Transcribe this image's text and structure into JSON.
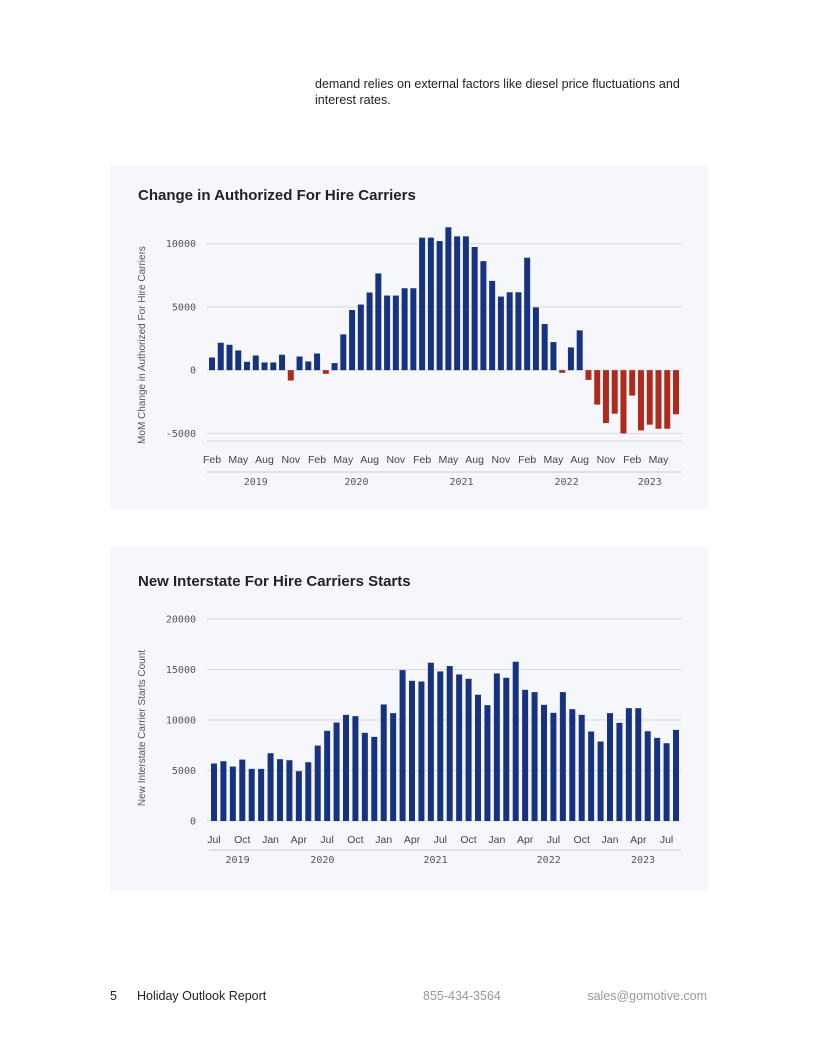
{
  "intro_text": "demand relies on external factors like diesel price fluctuations and interest rates.",
  "colors": {
    "positive": "#17337f",
    "negative": "#ad2a1c",
    "panel_bg": "#f5f7fa",
    "grid": "#d6d9de"
  },
  "footer": {
    "page_number": "5",
    "report_title": "Holiday Outlook Report",
    "phone": "855-434-3564",
    "email": "sales@gomotive.com"
  },
  "chart_data": [
    {
      "type": "bar",
      "title": "Change in Authorized For Hire Carriers",
      "ylabel": "MoM Change in Authorized For Hire Carriers",
      "xlabel": "",
      "ylim": [
        -5600,
        11400
      ],
      "yticks": [
        -5000,
        0,
        5000,
        10000
      ],
      "grid": true,
      "x_tick_months": [
        "Feb",
        "May",
        "Aug",
        "Nov"
      ],
      "negative_color": "#ad2a1c",
      "categories": [
        "Feb 2019",
        "Mar 2019",
        "Apr 2019",
        "May 2019",
        "Jun 2019",
        "Jul 2019",
        "Aug 2019",
        "Sep 2019",
        "Oct 2019",
        "Nov 2019",
        "Dec 2019",
        "Jan 2020",
        "Feb 2020",
        "Mar 2020",
        "Apr 2020",
        "May 2020",
        "Jun 2020",
        "Jul 2020",
        "Aug 2020",
        "Sep 2020",
        "Oct 2020",
        "Nov 2020",
        "Dec 2020",
        "Jan 2021",
        "Feb 2021",
        "Mar 2021",
        "Apr 2021",
        "May 2021",
        "Jun 2021",
        "Jul 2021",
        "Aug 2021",
        "Sep 2021",
        "Oct 2021",
        "Nov 2021",
        "Dec 2021",
        "Jan 2022",
        "Feb 2022",
        "Mar 2022",
        "Apr 2022",
        "May 2022",
        "Jun 2022",
        "Jul 2022",
        "Aug 2022",
        "Sep 2022",
        "Oct 2022",
        "Nov 2022",
        "Dec 2022",
        "Jan 2023",
        "Feb 2023",
        "Mar 2023",
        "Apr 2023",
        "May 2023",
        "Jun 2023",
        "Jul 2023"
      ],
      "values": [
        1000,
        2170,
        2010,
        1560,
        660,
        1160,
        610,
        610,
        1220,
        -820,
        1080,
        690,
        1320,
        -290,
        560,
        2830,
        4760,
        5190,
        6140,
        7650,
        5900,
        5900,
        6480,
        6480,
        10480,
        10480,
        10210,
        11300,
        10580,
        10580,
        9740,
        8620,
        7060,
        5820,
        6160,
        6160,
        8890,
        4970,
        3650,
        2220,
        -210,
        1800,
        3150,
        -770,
        -2720,
        -4180,
        -3440,
        -5000,
        -2010,
        -4760,
        -4310,
        -4630,
        -4630,
        -3490
      ]
    },
    {
      "type": "bar",
      "title": "New Interstate For Hire Carriers Starts",
      "ylabel": "New Interstate Carrier Starts Count",
      "xlabel": "",
      "ylim": [
        0,
        20000
      ],
      "yticks": [
        0,
        5000,
        10000,
        15000,
        20000
      ],
      "grid": true,
      "x_tick_months": [
        "Jan",
        "Apr",
        "Jul",
        "Oct"
      ],
      "categories": [
        "Jul 2019",
        "Aug 2019",
        "Sep 2019",
        "Oct 2019",
        "Nov 2019",
        "Dec 2019",
        "Jan 2020",
        "Feb 2020",
        "Mar 2020",
        "Apr 2020",
        "May 2020",
        "Jun 2020",
        "Jul 2020",
        "Aug 2020",
        "Sep 2020",
        "Oct 2020",
        "Nov 2020",
        "Dec 2020",
        "Jan 2021",
        "Feb 2021",
        "Mar 2021",
        "Apr 2021",
        "May 2021",
        "Jun 2021",
        "Jul 2021",
        "Aug 2021",
        "Sep 2021",
        "Oct 2021",
        "Nov 2021",
        "Dec 2021",
        "Jan 2022",
        "Feb 2022",
        "Mar 2022",
        "Apr 2022",
        "May 2022",
        "Jun 2022",
        "Jul 2022",
        "Aug 2022",
        "Sep 2022",
        "Oct 2022",
        "Nov 2022",
        "Dec 2022",
        "Jan 2023",
        "Feb 2023",
        "Mar 2023",
        "Apr 2023",
        "May 2023",
        "Jun 2023",
        "Jul 2023",
        "Aug 2023"
      ],
      "values": [
        5690,
        5920,
        5390,
        6080,
        5160,
        5160,
        6710,
        6120,
        6020,
        4930,
        5820,
        7470,
        8930,
        9750,
        10510,
        10380,
        8730,
        8330,
        11540,
        10680,
        14940,
        13880,
        13810,
        15670,
        14810,
        15340,
        14510,
        14080,
        12500,
        11470,
        14610,
        14180,
        15770,
        12990,
        12760,
        11500,
        10710,
        12760,
        11070,
        10510,
        8860,
        7870,
        10680,
        9720,
        11170,
        11170,
        8890,
        8230,
        7700,
        9020
      ]
    }
  ]
}
